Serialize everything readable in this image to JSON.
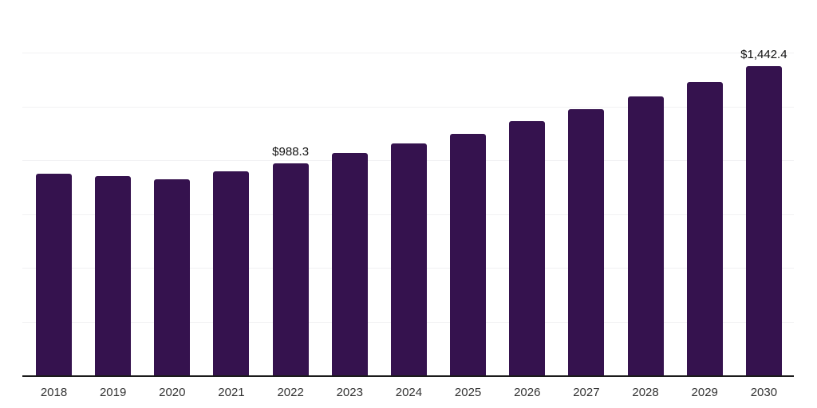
{
  "chart_data": {
    "type": "bar",
    "title": "",
    "xlabel": "",
    "ylabel": "",
    "categories": [
      "2018",
      "2019",
      "2020",
      "2021",
      "2022",
      "2023",
      "2024",
      "2025",
      "2026",
      "2027",
      "2028",
      "2029",
      "2030"
    ],
    "values": [
      941,
      932,
      915,
      953,
      988.3,
      1037,
      1081,
      1128,
      1186,
      1241,
      1300,
      1368,
      1442.4
    ],
    "value_labels": {
      "2022": "$988.3",
      "2030": "$1,442.4"
    },
    "ylim": [
      0,
      1750
    ],
    "gridline_step": 250,
    "grid": true,
    "legend": "none",
    "colors": {
      "bar": "#35124E",
      "gridline": "#F1F1F3",
      "axis": "#1B1B1B",
      "tick_label": "#333333",
      "value_label": "#111111",
      "background": "#FFFFFF"
    }
  }
}
